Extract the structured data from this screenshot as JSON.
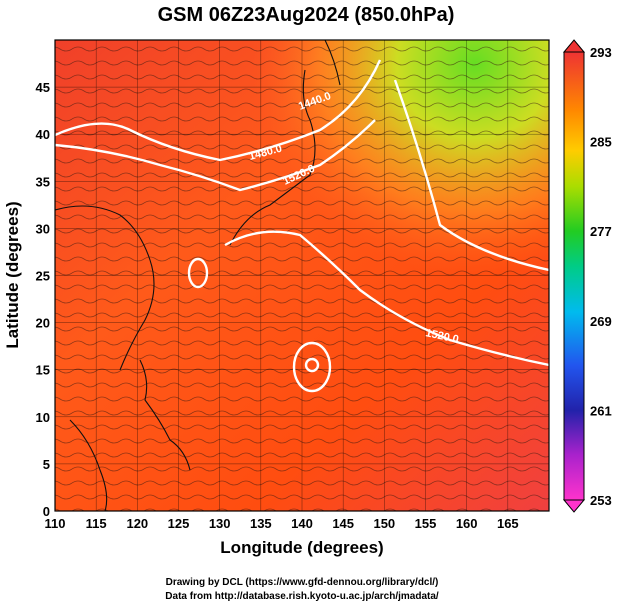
{
  "title": "GSM 06Z23Aug2024 (850.0hPa)",
  "x_axis": {
    "label": "Longitude (degrees)",
    "ticks": [
      "110",
      "115",
      "120",
      "125",
      "130",
      "135",
      "140",
      "145",
      "150",
      "155",
      "160",
      "165"
    ],
    "range": [
      110,
      170
    ]
  },
  "y_axis": {
    "label": "Latitude  (degrees)",
    "ticks": [
      "0",
      "5",
      "10",
      "15",
      "20",
      "25",
      "30",
      "35",
      "40",
      "45"
    ],
    "range": [
      0,
      50
    ]
  },
  "colorbar": {
    "ticks": [
      "293",
      "285",
      "277",
      "269",
      "261",
      "253"
    ],
    "range": [
      253,
      293
    ],
    "colors": [
      "#ff33cc",
      "#cc22cc",
      "#3333cc",
      "#0066ff",
      "#00ccff",
      "#00cc66",
      "#33cc00",
      "#99dd00",
      "#ffdd00",
      "#ff9900",
      "#ff5511",
      "#ee3333"
    ]
  },
  "contour_labels": [
    "1440.0",
    "1480.0",
    "1520.0",
    "1520.0"
  ],
  "footer": {
    "line1": "Drawing by DCL (https://www.gfd-dennou.org/library/dcl/)",
    "line2": "Data from http://database.rish.kyoto-u.ac.jp/arch/jmadata/"
  },
  "colors": {
    "field_warm": "#ff4d20",
    "field_hot": "#f23c3c",
    "field_cool": "#aadd22",
    "contour": "#ffffff"
  }
}
